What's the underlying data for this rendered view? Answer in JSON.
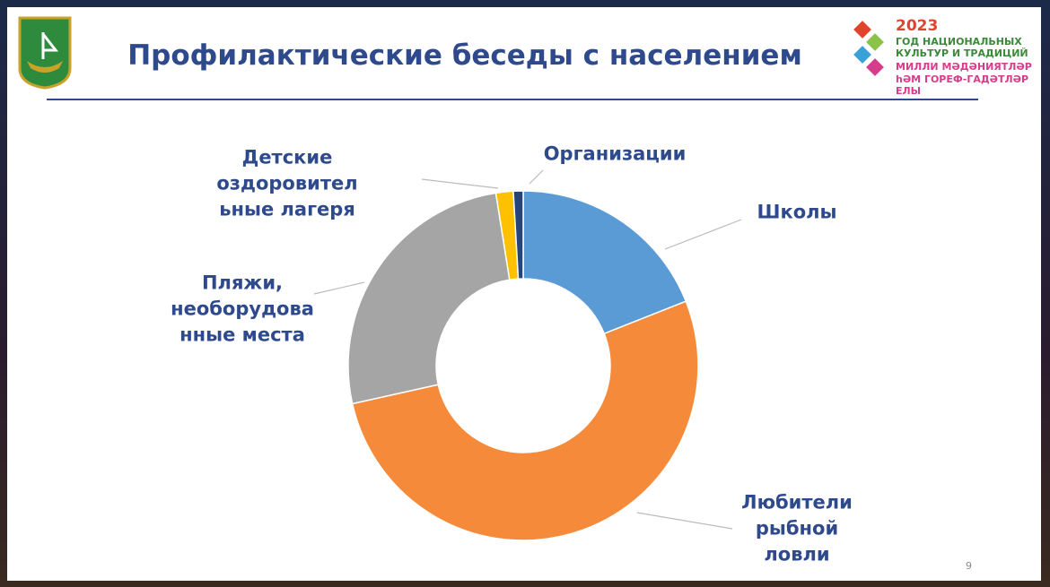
{
  "header": {
    "title": "Профилактические беседы с населением",
    "year": "2023",
    "line1": "ГОД НАЦИОНАЛЬНЫХ\nКУЛЬТУР И ТРАДИЦИЙ",
    "line2": "МИЛЛИ МӘДӘНИЯТЛӘР",
    "line3": "һӘМ ГОРЕФ-ГАДӘТЛӘР ЕЛЫ",
    "page_number": "9"
  },
  "chart_data": {
    "type": "donut",
    "categories": [
      "Школы",
      "Любители\nрыбной\nловли",
      "Пляжи,\nнеоборудова\nнные места",
      "Детские\nоздоровител\nьные лагеря",
      "Организации"
    ],
    "values": [
      19,
      52.5,
      26,
      1.6,
      0.9
    ],
    "colors": [
      "#5b9bd5",
      "#f58b3a",
      "#a5a5a5",
      "#ffc000",
      "#264478"
    ]
  }
}
